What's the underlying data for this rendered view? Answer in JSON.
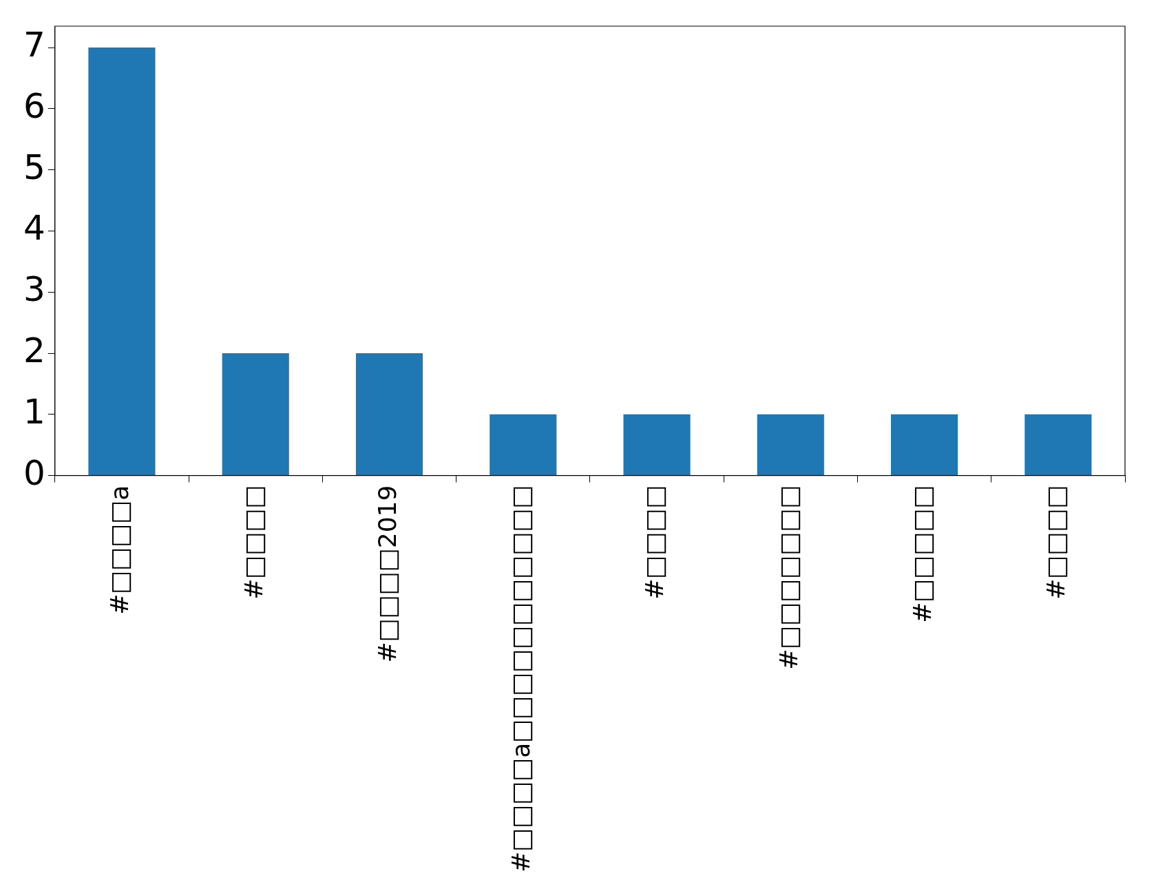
{
  "chart_data": {
    "type": "bar",
    "categories": [
      "#□□□□a",
      "#□□□□",
      "#□□□□2019",
      "#□□□□a□□□□□□□□□□□",
      "#□□□□",
      "#□□□□□□□",
      "#□□□□□",
      "#□□□□"
    ],
    "values": [
      7,
      2,
      2,
      1,
      1,
      1,
      1,
      1
    ],
    "color": "#1f77b4",
    "ylim": [
      0,
      7.35
    ],
    "yticks": [
      0,
      1,
      2,
      3,
      4,
      5,
      6,
      7
    ]
  }
}
